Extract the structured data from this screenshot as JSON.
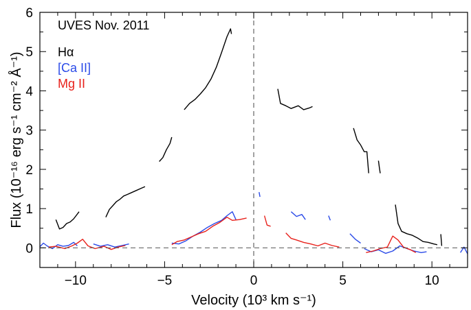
{
  "chart_data": {
    "type": "line",
    "title": "",
    "annotation": "UVES Nov. 2011",
    "xlabel": "Velocity (10³ km s⁻¹)",
    "ylabel": "Flux (10⁻¹⁶ erg s⁻¹ cm⁻² Å⁻¹)",
    "xlim": [
      -12,
      12
    ],
    "ylim": [
      -0.5,
      6
    ],
    "x_ticks": [
      -10,
      -5,
      0,
      5,
      10
    ],
    "x_tick_labels": [
      "−10",
      "−5",
      "0",
      "5",
      "10"
    ],
    "y_ticks": [
      0,
      1,
      2,
      3,
      4,
      5,
      6
    ],
    "y_tick_labels": [
      "0",
      "1",
      "2",
      "3",
      "4",
      "5",
      "6"
    ],
    "reference_lines": {
      "vertical_x": 0,
      "horizontal_y": 0,
      "style": "dashed"
    },
    "grid": false,
    "legend_position": "top-left",
    "series": [
      {
        "name": "Hα",
        "color": "#000000",
        "segments": [
          [
            [
              -11.1,
              0.72
            ],
            [
              -10.9,
              0.48
            ],
            [
              -10.7,
              0.52
            ],
            [
              -10.5,
              0.62
            ],
            [
              -10.3,
              0.66
            ],
            [
              -10.1,
              0.74
            ],
            [
              -9.9,
              0.86
            ],
            [
              -9.8,
              0.92
            ]
          ],
          [
            [
              -8.3,
              0.78
            ],
            [
              -8.1,
              0.98
            ],
            [
              -7.9,
              1.08
            ],
            [
              -7.7,
              1.18
            ],
            [
              -7.5,
              1.24
            ],
            [
              -7.3,
              1.32
            ],
            [
              -7.1,
              1.36
            ],
            [
              -6.9,
              1.4
            ],
            [
              -6.6,
              1.46
            ],
            [
              -6.3,
              1.52
            ],
            [
              -6.1,
              1.56
            ]
          ],
          [
            [
              -5.3,
              2.2
            ],
            [
              -5.1,
              2.3
            ],
            [
              -4.9,
              2.5
            ],
            [
              -4.7,
              2.66
            ],
            [
              -4.6,
              2.82
            ]
          ],
          [
            [
              -3.9,
              3.52
            ],
            [
              -3.6,
              3.68
            ],
            [
              -3.3,
              3.78
            ],
            [
              -3.0,
              3.92
            ],
            [
              -2.7,
              4.08
            ],
            [
              -2.4,
              4.3
            ],
            [
              -2.1,
              4.6
            ],
            [
              -1.8,
              4.98
            ],
            [
              -1.5,
              5.38
            ],
            [
              -1.3,
              5.58
            ],
            [
              -1.25,
              5.45
            ]
          ],
          [
            [
              1.35,
              4.05
            ],
            [
              1.5,
              3.68
            ],
            [
              1.8,
              3.62
            ],
            [
              2.1,
              3.55
            ],
            [
              2.5,
              3.62
            ],
            [
              2.8,
              3.52
            ],
            [
              3.1,
              3.56
            ],
            [
              3.3,
              3.6
            ]
          ],
          [
            [
              5.6,
              3.05
            ],
            [
              5.8,
              2.75
            ],
            [
              6.0,
              2.62
            ],
            [
              6.2,
              2.45
            ],
            [
              6.35,
              2.45
            ],
            [
              6.45,
              1.9
            ]
          ],
          [
            [
              7.0,
              2.22
            ],
            [
              7.05,
              2.05
            ],
            [
              7.1,
              1.9
            ]
          ],
          [
            [
              7.95,
              1.1
            ],
            [
              8.1,
              0.62
            ],
            [
              8.3,
              0.42
            ],
            [
              8.6,
              0.36
            ],
            [
              8.9,
              0.32
            ],
            [
              9.2,
              0.25
            ],
            [
              9.5,
              0.16
            ],
            [
              9.8,
              0.14
            ],
            [
              10.1,
              0.1
            ],
            [
              10.3,
              0.08
            ]
          ],
          [
            [
              10.5,
              0.35
            ],
            [
              10.55,
              0.05
            ]
          ]
        ]
      },
      {
        "name": "[Ca II]",
        "color": "#2a4ae8",
        "segments": [
          [
            [
              -12.0,
              0.03
            ],
            [
              -11.8,
              0.12
            ],
            [
              -11.6,
              0.05
            ],
            [
              -11.3,
              -0.02
            ],
            [
              -11.0,
              0.08
            ],
            [
              -10.7,
              0.04
            ],
            [
              -10.4,
              0.06
            ],
            [
              -10.1,
              0.14
            ],
            [
              -9.9,
              0.05
            ]
          ],
          [
            [
              -9.0,
              0.1
            ],
            [
              -8.6,
              0.04
            ],
            [
              -8.2,
              0.08
            ],
            [
              -7.8,
              0.02
            ],
            [
              -7.4,
              0.06
            ],
            [
              -7.0,
              0.1
            ]
          ],
          [
            [
              -4.6,
              0.12
            ],
            [
              -4.2,
              0.1
            ],
            [
              -3.8,
              0.18
            ],
            [
              -3.4,
              0.3
            ],
            [
              -3.0,
              0.4
            ],
            [
              -2.6,
              0.52
            ],
            [
              -2.2,
              0.62
            ],
            [
              -1.8,
              0.7
            ],
            [
              -1.5,
              0.82
            ],
            [
              -1.2,
              0.92
            ],
            [
              -1.0,
              0.72
            ]
          ],
          [
            [
              0.3,
              1.42
            ],
            [
              0.35,
              1.3
            ]
          ],
          [
            [
              2.1,
              0.92
            ],
            [
              2.4,
              0.8
            ],
            [
              2.7,
              0.85
            ],
            [
              2.9,
              0.72
            ]
          ],
          [
            [
              4.2,
              0.82
            ],
            [
              4.3,
              0.7
            ]
          ],
          [
            [
              5.4,
              0.36
            ],
            [
              5.7,
              0.22
            ],
            [
              6.0,
              0.12
            ]
          ],
          [
            [
              6.2,
              -0.02
            ],
            [
              6.6,
              -0.1
            ],
            [
              7.0,
              -0.05
            ],
            [
              7.4,
              -0.14
            ],
            [
              7.8,
              -0.08
            ],
            [
              8.2,
              0.05
            ],
            [
              8.6,
              -0.02
            ],
            [
              9.0,
              -0.08
            ],
            [
              9.4,
              -0.12
            ],
            [
              9.7,
              -0.1
            ]
          ],
          [
            [
              11.6,
              -0.12
            ],
            [
              11.8,
              0.02
            ],
            [
              12.0,
              -0.15
            ]
          ]
        ]
      },
      {
        "name": "Mg II",
        "color": "#e8201a",
        "segments": [
          [
            [
              -11.5,
              0.02
            ],
            [
              -11.1,
              0.04
            ],
            [
              -10.6,
              -0.02
            ],
            [
              -10.2,
              0.05
            ],
            [
              -9.9,
              0.12
            ],
            [
              -9.6,
              0.22
            ],
            [
              -9.3,
              0.05
            ],
            [
              -8.9,
              -0.02
            ],
            [
              -8.4,
              0.04
            ],
            [
              -8.0,
              -0.04
            ],
            [
              -7.6,
              0.02
            ],
            [
              -7.2,
              0.06
            ]
          ],
          [
            [
              -4.6,
              0.08
            ],
            [
              -4.3,
              0.16
            ],
            [
              -3.9,
              0.2
            ],
            [
              -3.5,
              0.28
            ],
            [
              -3.1,
              0.36
            ],
            [
              -2.7,
              0.42
            ],
            [
              -2.3,
              0.55
            ],
            [
              -1.9,
              0.65
            ],
            [
              -1.5,
              0.78
            ],
            [
              -1.2,
              0.7
            ],
            [
              -0.8,
              0.72
            ],
            [
              -0.4,
              0.76
            ]
          ],
          [
            [
              0.6,
              0.82
            ],
            [
              0.75,
              0.58
            ],
            [
              0.95,
              0.55
            ]
          ],
          [
            [
              1.8,
              0.38
            ],
            [
              2.1,
              0.24
            ],
            [
              2.4,
              0.2
            ],
            [
              2.8,
              0.14
            ],
            [
              3.2,
              0.1
            ],
            [
              3.6,
              0.05
            ],
            [
              4.0,
              0.12
            ],
            [
              4.4,
              0.06
            ],
            [
              4.8,
              0.02
            ]
          ],
          [
            [
              6.3,
              -0.12
            ],
            [
              6.7,
              -0.08
            ],
            [
              7.1,
              -0.02
            ],
            [
              7.5,
              0.02
            ],
            [
              7.8,
              0.3
            ],
            [
              8.1,
              0.2
            ],
            [
              8.4,
              0.02
            ],
            [
              8.8,
              -0.05
            ],
            [
              9.1,
              -0.12
            ]
          ]
        ]
      }
    ]
  }
}
